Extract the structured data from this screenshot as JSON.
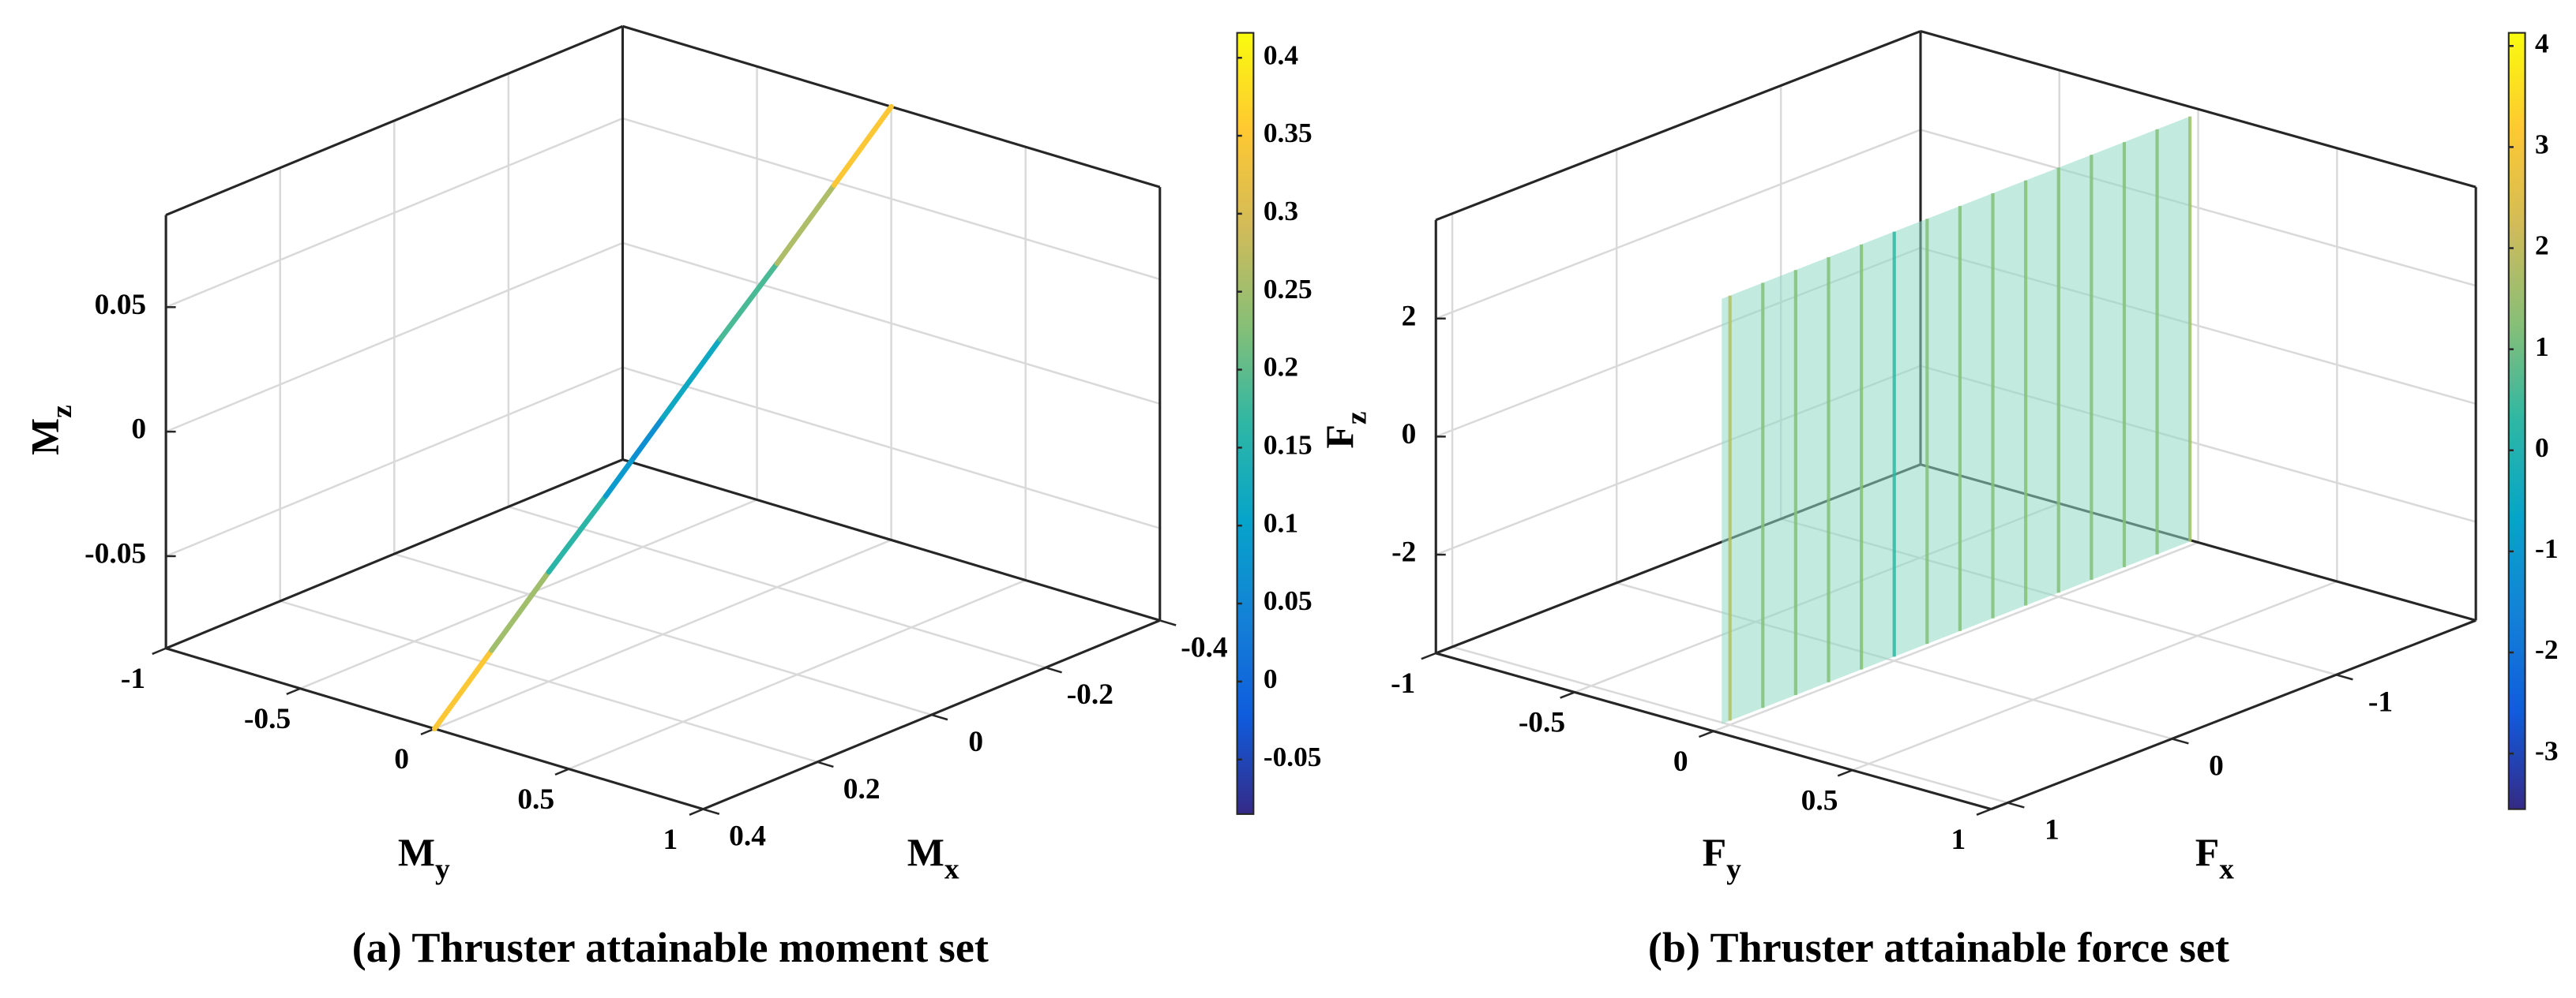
{
  "chart_data": [
    {
      "type": "line3d",
      "title": "(a) Thruster attainable moment set",
      "xlabel": {
        "text": "M",
        "sub": "x"
      },
      "ylabel": {
        "text": "M",
        "sub": "y"
      },
      "zlabel": {
        "text": "M",
        "sub": "z"
      },
      "xlim": [
        -0.4,
        0.4
      ],
      "xticks": [
        -0.4,
        -0.2,
        0,
        0.2,
        0.4
      ],
      "xdir": "reverse",
      "ylim": [
        -1,
        1
      ],
      "yticks": [
        -1,
        -0.5,
        0,
        0.5,
        1
      ],
      "zlim": [
        -0.087,
        0.087
      ],
      "zticks": [
        -0.05,
        0,
        0.05
      ],
      "grid": true,
      "colormap": "parula",
      "clim": [
        -0.085,
        0.416
      ],
      "cticks": [
        -0.05,
        0,
        0.05,
        0.1,
        0.15,
        0.2,
        0.25,
        0.3,
        0.35,
        0.4
      ],
      "series": [
        {
          "x": [
            0.4,
            0.3,
            0.2,
            0.1,
            0.05,
            0,
            -0.1,
            -0.2,
            -0.3,
            -0.4
          ],
          "y": [
            0,
            0,
            0,
            0,
            0,
            0,
            0,
            0,
            0,
            0
          ],
          "z": [
            -0.087,
            -0.065,
            -0.043,
            -0.022,
            -0.011,
            0,
            0.022,
            0.043,
            0.065,
            0.087
          ],
          "c": [
            0.4,
            0.3,
            0.2,
            0.12,
            0.05,
            0.08,
            0.15,
            0.22,
            0.3,
            0.4
          ]
        }
      ]
    },
    {
      "type": "surface3d",
      "title": "(b) Thruster attainable force set",
      "xlabel": {
        "text": "F",
        "sub": "x"
      },
      "ylabel": {
        "text": "F",
        "sub": "y"
      },
      "zlabel": {
        "text": "F",
        "sub": "z"
      },
      "xlim": [
        -1.85,
        1.1
      ],
      "xticks": [
        -1,
        0,
        1
      ],
      "xdir": "reverse",
      "ylim": [
        -1,
        1
      ],
      "yticks": [
        -1,
        -0.5,
        0,
        0.5,
        1
      ],
      "zlim": [
        -3.67,
        3.67
      ],
      "zticks": [
        -2,
        0,
        2
      ],
      "grid": true,
      "colormap": "parula",
      "clim": [
        -3.55,
        4.13
      ],
      "cticks": [
        -3,
        -2,
        -1,
        0,
        1,
        2,
        3,
        4
      ],
      "surface": {
        "x": [
          1.05,
          -1.8
        ],
        "y": 0,
        "z": [
          -3.6,
          3.6
        ],
        "color": "#8fd8c4",
        "alpha": 0.55
      },
      "stripes": {
        "x": [
          1.0,
          0.8,
          0.6,
          0.4,
          0.2,
          0,
          -0.2,
          -0.4,
          -0.6,
          -0.8,
          -1.0,
          -1.2,
          -1.4,
          -1.6,
          -1.8
        ],
        "c": [
          1.8,
          1.2,
          1.2,
          1.2,
          1.2,
          0.3,
          1.2,
          1.2,
          1.2,
          1.2,
          1.2,
          1.2,
          1.2,
          1.2,
          1.5
        ]
      }
    }
  ]
}
